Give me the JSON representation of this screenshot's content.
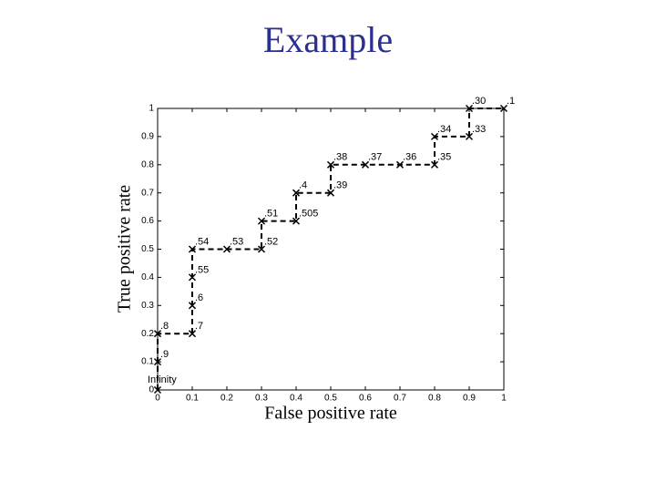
{
  "chart_data": {
    "type": "line",
    "title": "Example",
    "x_label": "False positive rate",
    "y_label": "True positive rate",
    "x": [
      0,
      0,
      0,
      0.1,
      0.1,
      0.1,
      0.1,
      0.2,
      0.3,
      0.3,
      0.4,
      0.4,
      0.5,
      0.5,
      0.6,
      0.7,
      0.8,
      0.8,
      0.9,
      0.9,
      1
    ],
    "values": [
      0,
      0.1,
      0.2,
      0.2,
      0.3,
      0.4,
      0.5,
      0.5,
      0.5,
      0.6,
      0.6,
      0.7,
      0.7,
      0.8,
      0.8,
      0.8,
      0.8,
      0.9,
      0.9,
      1,
      1
    ],
    "point_labels": [
      "Infinity",
      ".9",
      ".8",
      ".7",
      ".6",
      ".55",
      ".54",
      ".53",
      ".52",
      ".51",
      ".505",
      ".4",
      ".39",
      ".38",
      ".37",
      ".36",
      ".35",
      ".34",
      ".33",
      ".30",
      ".1"
    ],
    "color": "#000000",
    "xlim": [
      0,
      1
    ],
    "ylim": [
      0,
      1
    ],
    "xticks": [
      0,
      0.1,
      0.2,
      0.3,
      0.4,
      0.5,
      0.6,
      0.7,
      0.8,
      0.9,
      1
    ],
    "yticks": [
      0,
      0.1,
      0.2,
      0.3,
      0.4,
      0.5,
      0.6,
      0.7,
      0.8,
      0.9,
      1
    ]
  }
}
